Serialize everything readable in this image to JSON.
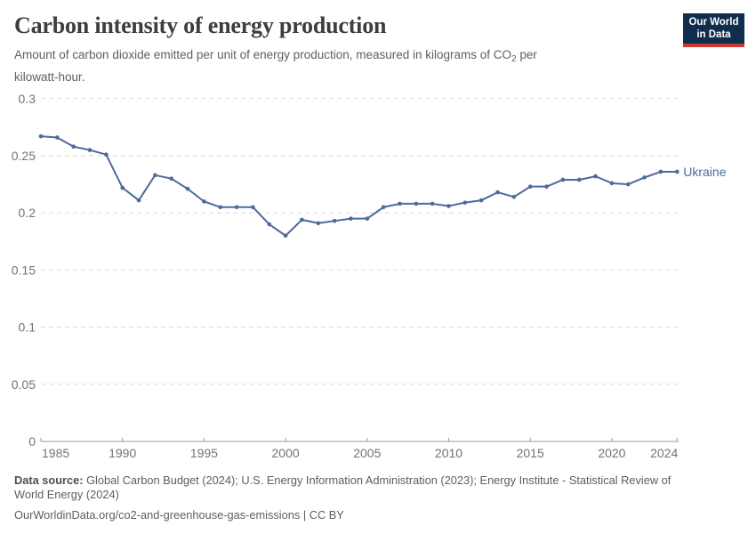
{
  "header": {
    "title": "Carbon intensity of energy production",
    "subtitle_pre": "Amount of carbon dioxide emitted per unit of energy production, measured in kilograms of CO",
    "subtitle_sub": "2",
    "subtitle_post": " per kilowatt-hour."
  },
  "logo": {
    "line1": "Our World",
    "line2": "in Data",
    "bg_color": "#102d4e",
    "stripe_color": "#cd3a30",
    "text_color": "#ffffff"
  },
  "chart_data": {
    "type": "line",
    "title": "Carbon intensity of energy production",
    "xlabel": "",
    "ylabel": "",
    "ylim": [
      0,
      0.3
    ],
    "grid": "dashed-horizontal",
    "legend_position": "end-of-line-label",
    "x": [
      1985,
      1986,
      1987,
      1988,
      1989,
      1990,
      1991,
      1992,
      1993,
      1994,
      1995,
      1996,
      1997,
      1998,
      1999,
      2000,
      2001,
      2002,
      2003,
      2004,
      2005,
      2006,
      2007,
      2008,
      2009,
      2010,
      2011,
      2012,
      2013,
      2014,
      2015,
      2016,
      2017,
      2018,
      2019,
      2020,
      2021,
      2022,
      2023,
      2024
    ],
    "series": [
      {
        "name": "Ukraine",
        "values": [
          0.267,
          0.266,
          0.258,
          0.255,
          0.251,
          0.222,
          0.211,
          0.233,
          0.23,
          0.221,
          0.21,
          0.205,
          0.205,
          0.205,
          0.19,
          0.18,
          0.194,
          0.191,
          0.193,
          0.195,
          0.195,
          0.205,
          0.208,
          0.208,
          0.208,
          0.206,
          0.209,
          0.211,
          0.218,
          0.214,
          0.223,
          0.223,
          0.229,
          0.229,
          0.232,
          0.226,
          0.225,
          0.231,
          0.236,
          0.236
        ]
      }
    ],
    "xticks": [
      1985,
      1990,
      1995,
      2000,
      2005,
      2010,
      2015,
      2020,
      2024
    ],
    "yticks": [
      0,
      0.05,
      0.1,
      0.15,
      0.2,
      0.25,
      0.3
    ],
    "colors": {
      "line": "#4C6A9C",
      "grid": "#dadada",
      "axis": "#9b9b9b",
      "tick_label": "#6d747b"
    }
  },
  "footer": {
    "source_label": "Data source:",
    "source_text": "Global Carbon Budget (2024); U.S. Energy Information Administration (2023); Energy Institute - Statistical Review of World Energy (2024)",
    "url": "OurWorldinData.org/co2-and-greenhouse-gas-emissions",
    "separator": " | ",
    "license": "CC BY"
  }
}
